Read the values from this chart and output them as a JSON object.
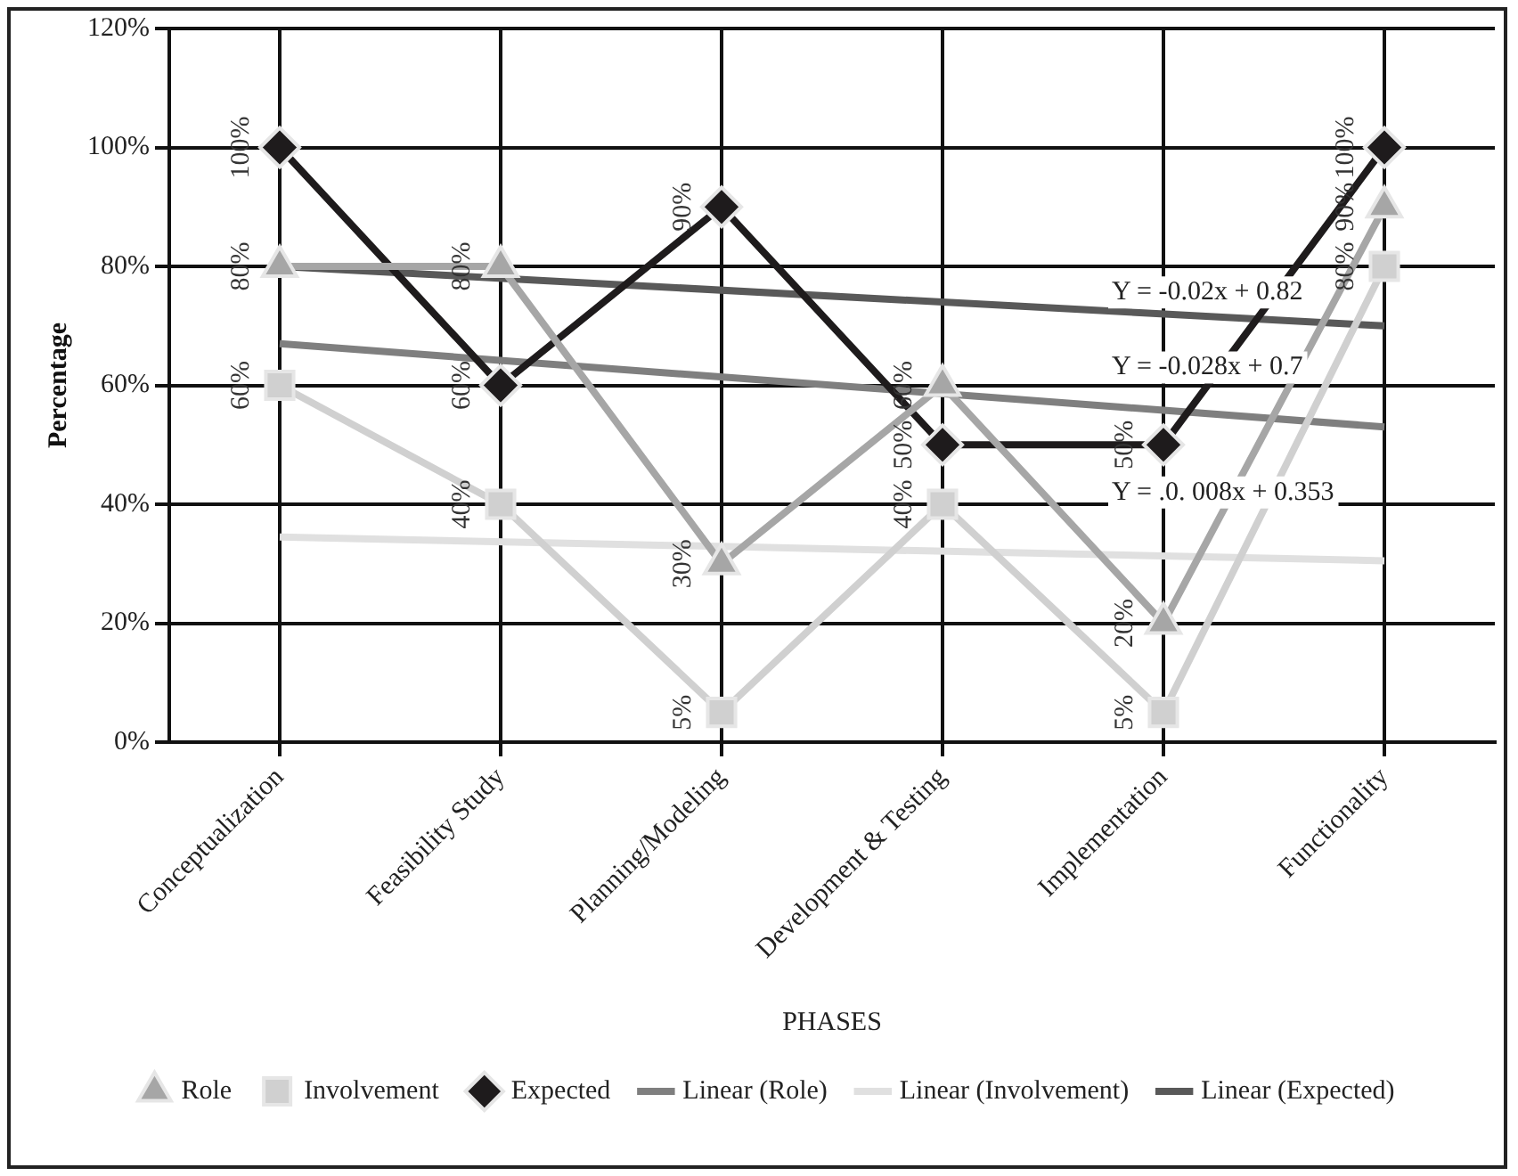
{
  "chart_data": {
    "type": "line",
    "xlabel": "PHASES",
    "ylabel": "Percentage",
    "categories": [
      "Conceptualization",
      "Feasibility Study",
      "Planning/Modeling",
      "Development & Testing",
      "Implementation",
      "Functionality"
    ],
    "series": [
      {
        "name": "Role",
        "color": "#a6a6a6",
        "marker": "triangle",
        "values": [
          80,
          80,
          30,
          60,
          20,
          90
        ],
        "value_labels": [
          "80%",
          "80%",
          "30%",
          "60%",
          "20%",
          "90%"
        ]
      },
      {
        "name": "Involvement",
        "color": "#d0d0d0",
        "marker": "square",
        "values": [
          60,
          40,
          5,
          40,
          5,
          80
        ],
        "value_labels": [
          "60%",
          "40%",
          "5%",
          "40%",
          "5%",
          "80%"
        ]
      },
      {
        "name": "Expected",
        "color": "#1e1b1c",
        "marker": "diamond",
        "values": [
          100,
          60,
          90,
          50,
          50,
          100
        ],
        "value_labels": [
          "100%",
          "60%",
          "90%",
          "50%",
          "50%",
          "100%"
        ]
      },
      {
        "name": "Linear (Role)",
        "color": "#7f7f7f",
        "marker": "none",
        "values": [
          67,
          null,
          null,
          null,
          null,
          53
        ]
      },
      {
        "name": "Linear (Involvement)",
        "color": "#e0e0e0",
        "marker": "none",
        "values": [
          34.5,
          null,
          null,
          null,
          null,
          30.5
        ]
      },
      {
        "name": "Linear (Expected)",
        "color": "#595959",
        "marker": "none",
        "values": [
          80,
          null,
          null,
          null,
          null,
          70
        ]
      }
    ],
    "ylim": [
      0,
      120
    ],
    "yticks": [
      {
        "value": 0,
        "label": "0%"
      },
      {
        "value": 20,
        "label": "20%"
      },
      {
        "value": 40,
        "label": "40%"
      },
      {
        "value": 60,
        "label": "60%"
      },
      {
        "value": 80,
        "label": "80%"
      },
      {
        "value": 100,
        "label": "100%"
      },
      {
        "value": 120,
        "label": "120%"
      }
    ],
    "grid": true,
    "legend": "bottom",
    "line_style": "solid",
    "annotations": [
      "Y = -0.02x + 0.82",
      "Y = -0.028x + 0.7",
      "Y = .0. 008x + 0.353"
    ]
  }
}
